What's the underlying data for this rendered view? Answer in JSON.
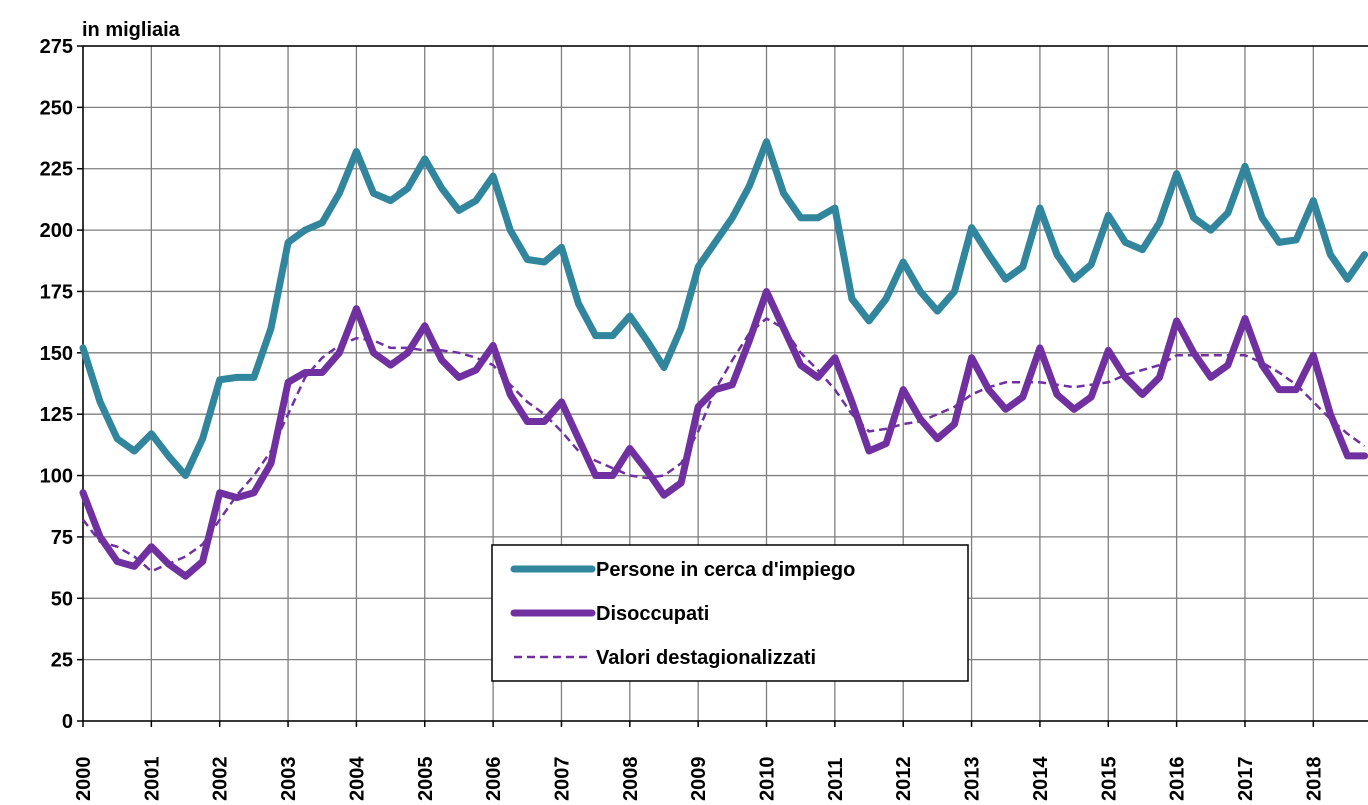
{
  "chart_data": {
    "type": "line",
    "y_label": "in migliaia",
    "x": [
      2000,
      2000.25,
      2000.5,
      2000.75,
      2001,
      2001.25,
      2001.5,
      2001.75,
      2002,
      2002.25,
      2002.5,
      2002.75,
      2003,
      2003.25,
      2003.5,
      2003.75,
      2004,
      2004.25,
      2004.5,
      2004.75,
      2005,
      2005.25,
      2005.5,
      2005.75,
      2006,
      2006.25,
      2006.5,
      2006.75,
      2007,
      2007.25,
      2007.5,
      2007.75,
      2008,
      2008.25,
      2008.5,
      2008.75,
      2009,
      2009.25,
      2009.5,
      2009.75,
      2010,
      2010.25,
      2010.5,
      2010.75,
      2011,
      2011.25,
      2011.5,
      2011.75,
      2012,
      2012.25,
      2012.5,
      2012.75,
      2013,
      2013.25,
      2013.5,
      2013.75,
      2014,
      2014.25,
      2014.5,
      2014.75,
      2015,
      2015.25,
      2015.5,
      2015.75,
      2016,
      2016.25,
      2016.5,
      2016.75,
      2017,
      2017.25,
      2017.5,
      2017.75,
      2018,
      2018.25,
      2018.5,
      2018.75
    ],
    "series": [
      {
        "name": "Persone in cerca d'impiego",
        "color": "#31859c",
        "style": "solid",
        "values": [
          152,
          130,
          115,
          110,
          117,
          108,
          100,
          115,
          139,
          140,
          140,
          160,
          195,
          200,
          203,
          215,
          232,
          215,
          212,
          217,
          229,
          217,
          208,
          212,
          222,
          200,
          188,
          187,
          193,
          170,
          157,
          157,
          165,
          155,
          144,
          160,
          185,
          195,
          205,
          218,
          236,
          215,
          205,
          205,
          209,
          172,
          163,
          172,
          187,
          175,
          167,
          175,
          201,
          190,
          180,
          185,
          209,
          190,
          180,
          186,
          206,
          195,
          192,
          203,
          223,
          205,
          200,
          207,
          226,
          205,
          195,
          196,
          212,
          190,
          180,
          190
        ]
      },
      {
        "name": "Disoccupati",
        "color": "#7030a0",
        "style": "solid",
        "values": [
          93,
          75,
          65,
          63,
          71,
          64,
          59,
          65,
          93,
          91,
          93,
          105,
          138,
          142,
          142,
          150,
          168,
          150,
          145,
          150,
          161,
          147,
          140,
          143,
          153,
          133,
          122,
          122,
          130,
          115,
          100,
          100,
          111,
          102,
          92,
          97,
          128,
          135,
          137,
          155,
          175,
          160,
          145,
          140,
          148,
          130,
          110,
          113,
          135,
          123,
          115,
          121,
          148,
          135,
          127,
          132,
          152,
          133,
          127,
          132,
          151,
          140,
          133,
          140,
          163,
          150,
          140,
          145,
          164,
          145,
          135,
          135,
          149,
          125,
          108,
          108
        ]
      },
      {
        "name": "Valori destagionalizzati",
        "color": "#7030a0",
        "style": "dashed",
        "values": [
          82,
          73,
          71,
          67,
          61,
          64,
          67,
          72,
          82,
          92,
          100,
          110,
          125,
          140,
          148,
          153,
          156,
          155,
          152,
          152,
          151,
          151,
          150,
          148,
          145,
          137,
          130,
          125,
          118,
          110,
          106,
          103,
          100,
          99,
          100,
          105,
          118,
          135,
          147,
          158,
          164,
          160,
          150,
          143,
          135,
          125,
          118,
          119,
          121,
          122,
          125,
          128,
          133,
          136,
          138,
          138,
          138,
          137,
          136,
          137,
          138,
          141,
          143,
          145,
          149,
          149,
          149,
          149,
          149,
          146,
          142,
          137,
          130,
          123,
          117,
          112
        ]
      }
    ],
    "xlim": [
      2000,
      2018.8
    ],
    "xticks": [
      2000,
      2001,
      2002,
      2003,
      2004,
      2005,
      2006,
      2007,
      2008,
      2009,
      2010,
      2011,
      2012,
      2013,
      2014,
      2015,
      2016,
      2017,
      2018
    ],
    "ylim": [
      0,
      275
    ],
    "yticks": [
      0,
      25,
      50,
      75,
      100,
      125,
      150,
      175,
      200,
      225,
      250,
      275
    ],
    "grid": true,
    "legend": "bottom-center"
  }
}
